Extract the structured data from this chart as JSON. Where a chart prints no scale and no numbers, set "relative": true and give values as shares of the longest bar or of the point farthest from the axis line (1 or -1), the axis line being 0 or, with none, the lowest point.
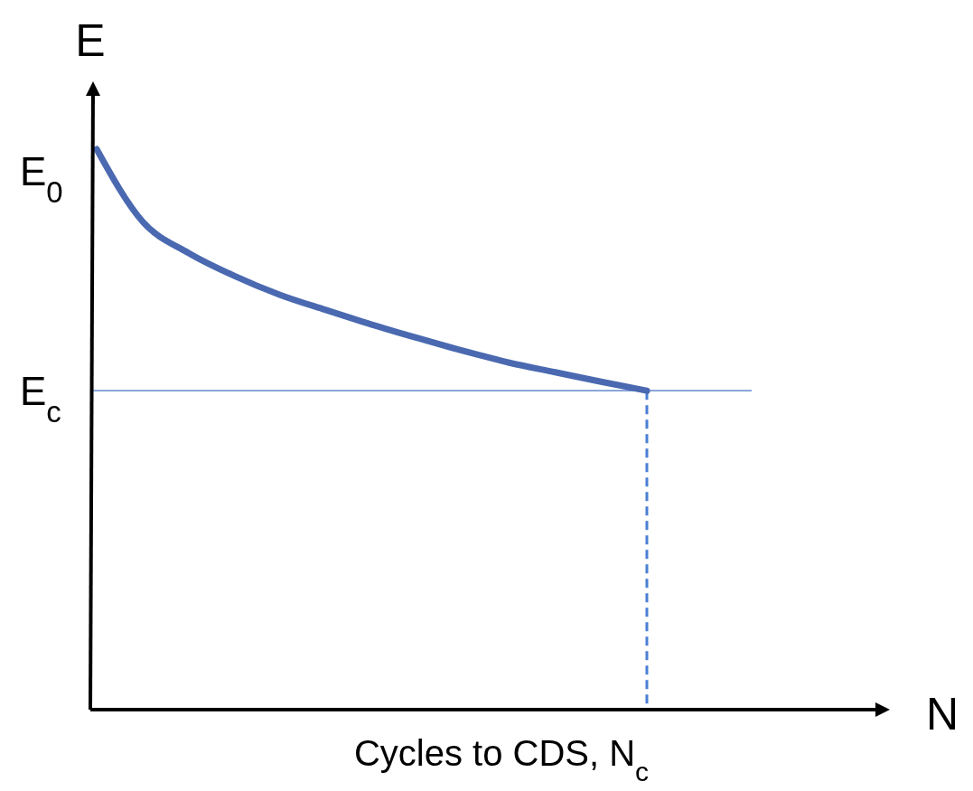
{
  "chart_data": {
    "type": "line",
    "relative": true,
    "xlabel": "Cycles to CDS, N$_{c}$",
    "ylabel": "E",
    "categories": [
      null,
      null,
      null,
      null,
      null,
      null,
      null,
      null,
      null,
      null,
      null,
      null,
      null
    ],
    "series": [
      {
        "color": "#4a69b0",
        "values": [
          1.0,
          0.871,
          0.815,
          0.774,
          0.74,
          0.713,
          0.687,
          0.663,
          0.64,
          0.619,
          0.602,
          0.585,
          0.569
        ]
      }
    ],
    "ref_lines": [
      {
        "axis": "y",
        "value": 0.569,
        "label": "E$_{c}$",
        "color": "#4472c4",
        "line_style": "solid"
      }
    ],
    "annotations": [
      "E$_{0}$",
      "N"
    ],
    "line_style": "solid"
  }
}
